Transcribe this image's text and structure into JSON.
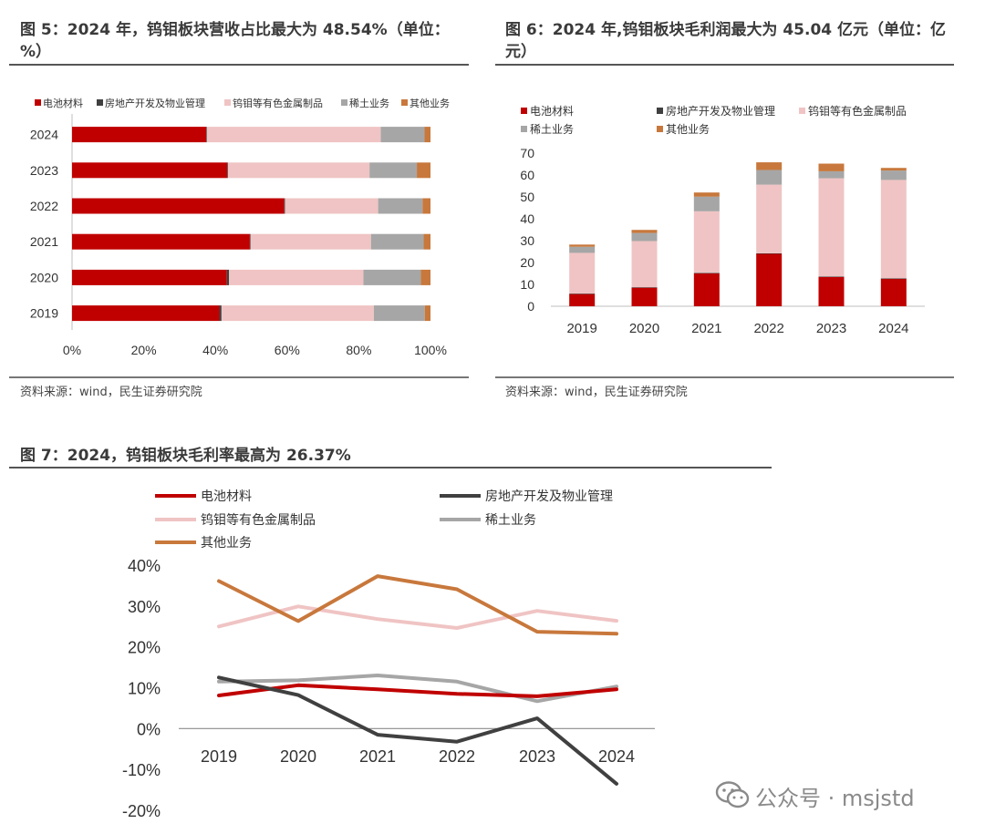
{
  "figures": [
    {
      "title": "图 5：2024 年，钨钼板块营收占比最大为 48.54%（单位：%）",
      "source": "资料来源：wind，民生证券研究院"
    },
    {
      "title": "图 6：2024 年,钨钼板块毛利润最大为 45.04 亿元（单位：亿元）",
      "source": "资料来源：wind，民生证券研究院"
    },
    {
      "title": "图 7：2024，钨钼板块毛利率最高为 26.37%"
    }
  ],
  "watermark": "公众号 · msjstd",
  "colors": {
    "battery": "#c00000",
    "realestate": "#404040",
    "tungsten": "#f0c4c4",
    "rareearth": "#a6a6a6",
    "other": "#c8783c"
  },
  "chart_data": [
    {
      "type": "bar",
      "orientation": "horizontal",
      "stacked": "percent",
      "categories": [
        "2024",
        "2023",
        "2022",
        "2021",
        "2020",
        "2019"
      ],
      "series": [
        {
          "name": "电池材料",
          "values": [
            37.4,
            43.3,
            59.2,
            49.6,
            43.2,
            41.1
          ]
        },
        {
          "name": "房地产开发及物业管理",
          "values": [
            0.2,
            0.2,
            0.2,
            0.2,
            0.6,
            0.6
          ]
        },
        {
          "name": "钨钼等有色金属制品",
          "values": [
            48.54,
            39.5,
            26.0,
            33.6,
            37.5,
            42.5
          ]
        },
        {
          "name": "稀土业务",
          "values": [
            12.2,
            13.2,
            12.4,
            14.7,
            16.0,
            14.2
          ]
        },
        {
          "name": "其他业务",
          "values": [
            1.66,
            3.8,
            2.2,
            1.9,
            2.7,
            1.6
          ]
        }
      ],
      "xlim": [
        0,
        100
      ],
      "xticks": [
        "0%",
        "20%",
        "40%",
        "60%",
        "80%",
        "100%"
      ],
      "legend": "top"
    },
    {
      "type": "bar",
      "stacked": true,
      "categories": [
        "2019",
        "2020",
        "2021",
        "2022",
        "2023",
        "2024"
      ],
      "series": [
        {
          "name": "电池材料",
          "values": [
            5.6,
            8.5,
            15.0,
            24.0,
            13.4,
            12.6
          ]
        },
        {
          "name": "房地产开发及物业管理",
          "values": [
            0.2,
            0.2,
            0.2,
            0.2,
            0.2,
            0.1
          ]
        },
        {
          "name": "钨钼等有色金属制品",
          "values": [
            18.6,
            21.1,
            28.2,
            31.4,
            44.9,
            45.04
          ]
        },
        {
          "name": "稀土业务",
          "values": [
            2.8,
            3.7,
            6.7,
            6.7,
            3.2,
            4.3
          ]
        },
        {
          "name": "其他业务",
          "values": [
            1.0,
            1.4,
            1.9,
            3.5,
            3.5,
            1.2
          ]
        }
      ],
      "ylim": [
        0,
        70
      ],
      "yticks": [
        0,
        10,
        20,
        30,
        40,
        50,
        60,
        70
      ],
      "legend": "top"
    },
    {
      "type": "line",
      "categories": [
        "2019",
        "2020",
        "2021",
        "2022",
        "2023",
        "2024"
      ],
      "series": [
        {
          "name": "电池材料",
          "values": [
            8.1,
            10.6,
            9.6,
            8.5,
            7.9,
            9.6
          ]
        },
        {
          "name": "房地产开发及物业管理",
          "values": [
            12.5,
            8.2,
            -1.5,
            -3.2,
            2.5,
            -13.5
          ]
        },
        {
          "name": "钨钼等有色金属制品",
          "values": [
            25.0,
            29.9,
            26.8,
            24.6,
            28.8,
            26.37
          ]
        },
        {
          "name": "稀土业务",
          "values": [
            11.5,
            11.8,
            13.0,
            11.5,
            6.7,
            10.3
          ]
        },
        {
          "name": "其他业务",
          "values": [
            36.1,
            26.3,
            37.3,
            34.1,
            23.7,
            23.2
          ]
        }
      ],
      "ylim": [
        -20,
        40
      ],
      "yticks": [
        "-20%",
        "-10%",
        "0%",
        "10%",
        "20%",
        "30%",
        "40%"
      ],
      "legend": "top"
    }
  ]
}
